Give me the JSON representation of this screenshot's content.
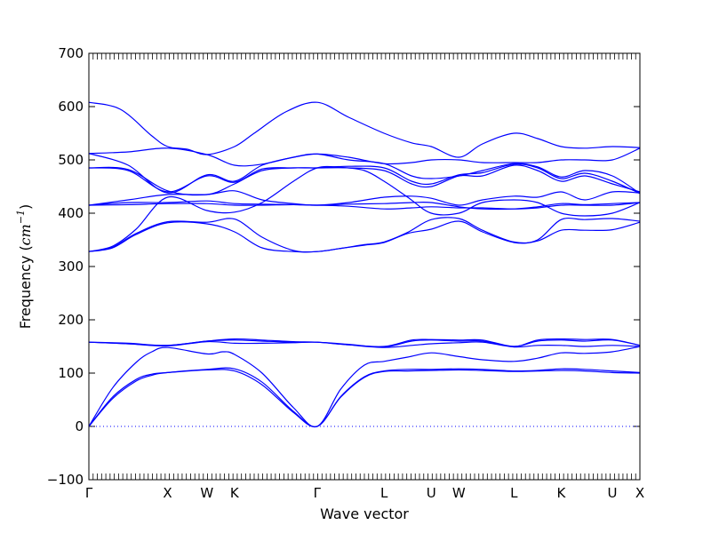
{
  "chart_data": {
    "type": "line",
    "xlabel": "Wave vector",
    "ylabel_text": "Frequency (",
    "ylabel_math": "cm",
    "ylabel_sup": "−1",
    "ylabel_close": ")",
    "ylim": [
      -100,
      700
    ],
    "yticks": [
      -100,
      0,
      100,
      200,
      300,
      400,
      500,
      600,
      700
    ],
    "xlim": [
      0,
      7
    ],
    "kpoints": [
      {
        "label": "Γ",
        "x": 0.0
      },
      {
        "label": "X",
        "x": 1.0
      },
      {
        "label": "W",
        "x": 1.5
      },
      {
        "label": "K",
        "x": 1.85
      },
      {
        "label": "Γ",
        "x": 2.9
      },
      {
        "label": "L",
        "x": 3.75
      },
      {
        "label": "U",
        "x": 4.35
      },
      {
        "label": "W",
        "x": 4.7
      },
      {
        "label": "L",
        "x": 5.4
      },
      {
        "label": "K",
        "x": 6.0
      },
      {
        "label": "U",
        "x": 6.65
      },
      {
        "label": "X",
        "x": 7.0
      }
    ],
    "zero_line": {
      "y": 0,
      "style": "dotted"
    },
    "line_color": "#0000ff",
    "series": [
      {
        "x": [
          0,
          0.3,
          0.6,
          0.8,
          1.0,
          1.5,
          1.85,
          2.2,
          2.6,
          2.9,
          3.2,
          3.5,
          3.75,
          4.05,
          4.35,
          4.7,
          5.0,
          5.4,
          5.7,
          6.0,
          6.3,
          6.65,
          7.0
        ],
        "y": [
          0,
          55,
          88,
          98,
          101,
          106,
          104,
          78,
          26,
          0,
          55,
          92,
          103,
          104,
          105,
          106,
          105,
          103,
          104,
          105,
          104,
          101,
          100
        ]
      },
      {
        "x": [
          0,
          0.3,
          0.6,
          0.8,
          1.0,
          1.5,
          1.85,
          2.2,
          2.6,
          2.9,
          3.2,
          3.5,
          3.75,
          4.05,
          4.35,
          4.7,
          5.0,
          5.4,
          5.7,
          6.0,
          6.3,
          6.65,
          7.0
        ],
        "y": [
          0,
          52,
          85,
          96,
          101,
          107,
          108,
          83,
          28,
          0,
          56,
          93,
          104,
          107,
          107,
          108,
          107,
          104,
          105,
          108,
          107,
          104,
          101
        ]
      },
      {
        "x": [
          0,
          0.3,
          0.6,
          0.8,
          1.0,
          1.5,
          1.7,
          1.85,
          2.2,
          2.6,
          2.9,
          3.2,
          3.5,
          3.75,
          4.05,
          4.35,
          4.7,
          5.0,
          5.4,
          5.7,
          6.0,
          6.3,
          6.65,
          7.0
        ],
        "y": [
          0,
          72,
          120,
          140,
          148,
          136,
          140,
          135,
          100,
          35,
          0,
          70,
          115,
          122,
          130,
          138,
          131,
          125,
          122,
          128,
          138,
          137,
          140,
          150
        ]
      },
      {
        "x": [
          0,
          0.5,
          1.0,
          1.5,
          1.85,
          2.2,
          2.6,
          2.9,
          3.3,
          3.75,
          4.1,
          4.35,
          4.7,
          5.0,
          5.4,
          5.7,
          6.0,
          6.3,
          6.65,
          7.0
        ],
        "y": [
          158,
          155,
          151,
          159,
          156,
          156,
          157,
          158,
          153,
          148,
          152,
          155,
          157,
          158,
          149,
          152,
          152,
          150,
          152,
          150
        ]
      },
      {
        "x": [
          0,
          0.5,
          1.0,
          1.5,
          1.85,
          2.2,
          2.6,
          2.9,
          3.3,
          3.75,
          4.1,
          4.35,
          4.7,
          5.0,
          5.4,
          5.7,
          6.0,
          6.3,
          6.65,
          7.0
        ],
        "y": [
          158,
          156,
          152,
          160,
          162,
          160,
          158,
          158,
          154,
          149,
          160,
          162,
          160,
          160,
          150,
          160,
          162,
          160,
          162,
          152
        ]
      },
      {
        "x": [
          0,
          0.5,
          1.0,
          1.5,
          1.85,
          2.2,
          2.6,
          2.9,
          3.3,
          3.75,
          4.1,
          4.35,
          4.7,
          5.0,
          5.4,
          5.7,
          6.0,
          6.3,
          6.65,
          7.0
        ],
        "y": [
          158,
          155,
          152,
          160,
          164,
          162,
          159,
          158,
          153,
          150,
          162,
          163,
          162,
          162,
          150,
          162,
          164,
          163,
          163,
          152
        ]
      },
      {
        "x": [
          0,
          0.3,
          0.6,
          1.0,
          1.5,
          1.85,
          2.2,
          2.6,
          2.9,
          3.2,
          3.5,
          3.75,
          4.05,
          4.35,
          4.7,
          5.0,
          5.4,
          5.7,
          6.0,
          6.3,
          6.65,
          7.0
        ],
        "y": [
          328,
          335,
          360,
          382,
          380,
          365,
          335,
          328,
          328,
          334,
          340,
          345,
          362,
          370,
          385,
          365,
          345,
          348,
          368,
          368,
          369,
          383
        ]
      },
      {
        "x": [
          0,
          0.3,
          0.6,
          1.0,
          1.5,
          1.85,
          2.2,
          2.6,
          2.9,
          3.2,
          3.5,
          3.75,
          4.05,
          4.35,
          4.7,
          5.0,
          5.4,
          5.7,
          6.0,
          6.3,
          6.65,
          7.0
        ],
        "y": [
          328,
          336,
          362,
          384,
          383,
          389,
          355,
          330,
          328,
          334,
          341,
          346,
          364,
          388,
          390,
          368,
          346,
          350,
          388,
          388,
          390,
          385
        ]
      },
      {
        "x": [
          0,
          0.3,
          0.6,
          1.0,
          1.5,
          1.85,
          2.2,
          2.6,
          2.9,
          3.2,
          3.5,
          3.75,
          4.05,
          4.35,
          4.7,
          5.0,
          5.4,
          5.7,
          6.0,
          6.3,
          6.65,
          7.0
        ],
        "y": [
          328,
          338,
          370,
          430,
          405,
          402,
          420,
          460,
          485,
          486,
          480,
          460,
          430,
          400,
          400,
          420,
          425,
          420,
          400,
          395,
          400,
          420
        ]
      },
      {
        "x": [
          0,
          0.5,
          1.0,
          1.5,
          1.85,
          2.2,
          2.6,
          2.9,
          3.3,
          3.75,
          4.1,
          4.35,
          4.7,
          5.0,
          5.4,
          5.7,
          6.0,
          6.3,
          6.65,
          7.0
        ],
        "y": [
          415,
          416,
          418,
          418,
          415,
          415,
          416,
          415,
          413,
          408,
          410,
          412,
          410,
          410,
          408,
          410,
          415,
          415,
          415,
          420
        ]
      },
      {
        "x": [
          0,
          0.5,
          1.0,
          1.5,
          1.85,
          2.2,
          2.6,
          2.9,
          3.3,
          3.75,
          4.1,
          4.35,
          4.7,
          5.0,
          5.4,
          5.7,
          6.0,
          6.3,
          6.65,
          7.0
        ],
        "y": [
          415,
          420,
          420,
          423,
          418,
          417,
          416,
          415,
          417,
          418,
          420,
          420,
          412,
          408,
          408,
          412,
          418,
          416,
          418,
          420
        ]
      },
      {
        "x": [
          0,
          0.5,
          1.0,
          1.5,
          1.85,
          2.2,
          2.6,
          2.9,
          3.3,
          3.75,
          4.1,
          4.35,
          4.7,
          5.0,
          5.4,
          5.7,
          6.0,
          6.3,
          6.65,
          7.0
        ],
        "y": [
          415,
          425,
          435,
          435,
          442,
          425,
          418,
          415,
          420,
          430,
          432,
          428,
          415,
          425,
          432,
          430,
          440,
          425,
          440,
          438
        ]
      },
      {
        "x": [
          0,
          0.5,
          1.0,
          1.5,
          1.85,
          2.2,
          2.6,
          2.9,
          3.3,
          3.75,
          4.1,
          4.35,
          4.7,
          5.0,
          5.4,
          5.7,
          6.0,
          6.3,
          6.65,
          7.0
        ],
        "y": [
          485,
          482,
          442,
          435,
          455,
          480,
          485,
          485,
          485,
          480,
          455,
          450,
          470,
          470,
          490,
          480,
          460,
          470,
          455,
          440
        ]
      },
      {
        "x": [
          0,
          0.5,
          1.0,
          1.5,
          1.85,
          2.2,
          2.6,
          2.9,
          3.3,
          3.75,
          4.1,
          4.35,
          4.7,
          5.0,
          5.4,
          5.7,
          6.0,
          6.3,
          6.65,
          7.0
        ],
        "y": [
          485,
          480,
          440,
          470,
          458,
          483,
          485,
          485,
          488,
          485,
          460,
          455,
          472,
          476,
          492,
          485,
          465,
          475,
          460,
          437
        ]
      },
      {
        "x": [
          0,
          0.5,
          1.0,
          1.5,
          1.85,
          2.2,
          2.6,
          2.9,
          3.3,
          3.75,
          4.1,
          4.35,
          4.7,
          5.0,
          5.4,
          5.7,
          6.0,
          6.3,
          6.65,
          7.0
        ],
        "y": [
          512,
          490,
          438,
          472,
          460,
          490,
          505,
          511,
          500,
          493,
          470,
          465,
          470,
          480,
          493,
          487,
          468,
          480,
          470,
          437
        ]
      },
      {
        "x": [
          0,
          0.5,
          1.0,
          1.5,
          1.85,
          2.2,
          2.6,
          2.9,
          3.3,
          3.75,
          4.1,
          4.35,
          4.7,
          5.0,
          5.4,
          5.7,
          6.0,
          6.3,
          6.65,
          7.0
        ],
        "y": [
          512,
          515,
          522,
          510,
          490,
          492,
          505,
          511,
          505,
          493,
          495,
          500,
          500,
          495,
          495,
          495,
          500,
          500,
          500,
          522
        ]
      },
      {
        "x": [
          0,
          0.4,
          0.8,
          1.0,
          1.25,
          1.5,
          1.85,
          2.1,
          2.5,
          2.9,
          3.3,
          3.75,
          4.1,
          4.35,
          4.7,
          5.0,
          5.4,
          5.7,
          6.0,
          6.3,
          6.65,
          7.0
        ],
        "y": [
          608,
          595,
          545,
          525,
          520,
          510,
          525,
          550,
          590,
          608,
          580,
          550,
          532,
          525,
          505,
          530,
          550,
          540,
          525,
          522,
          525,
          523
        ]
      }
    ]
  }
}
